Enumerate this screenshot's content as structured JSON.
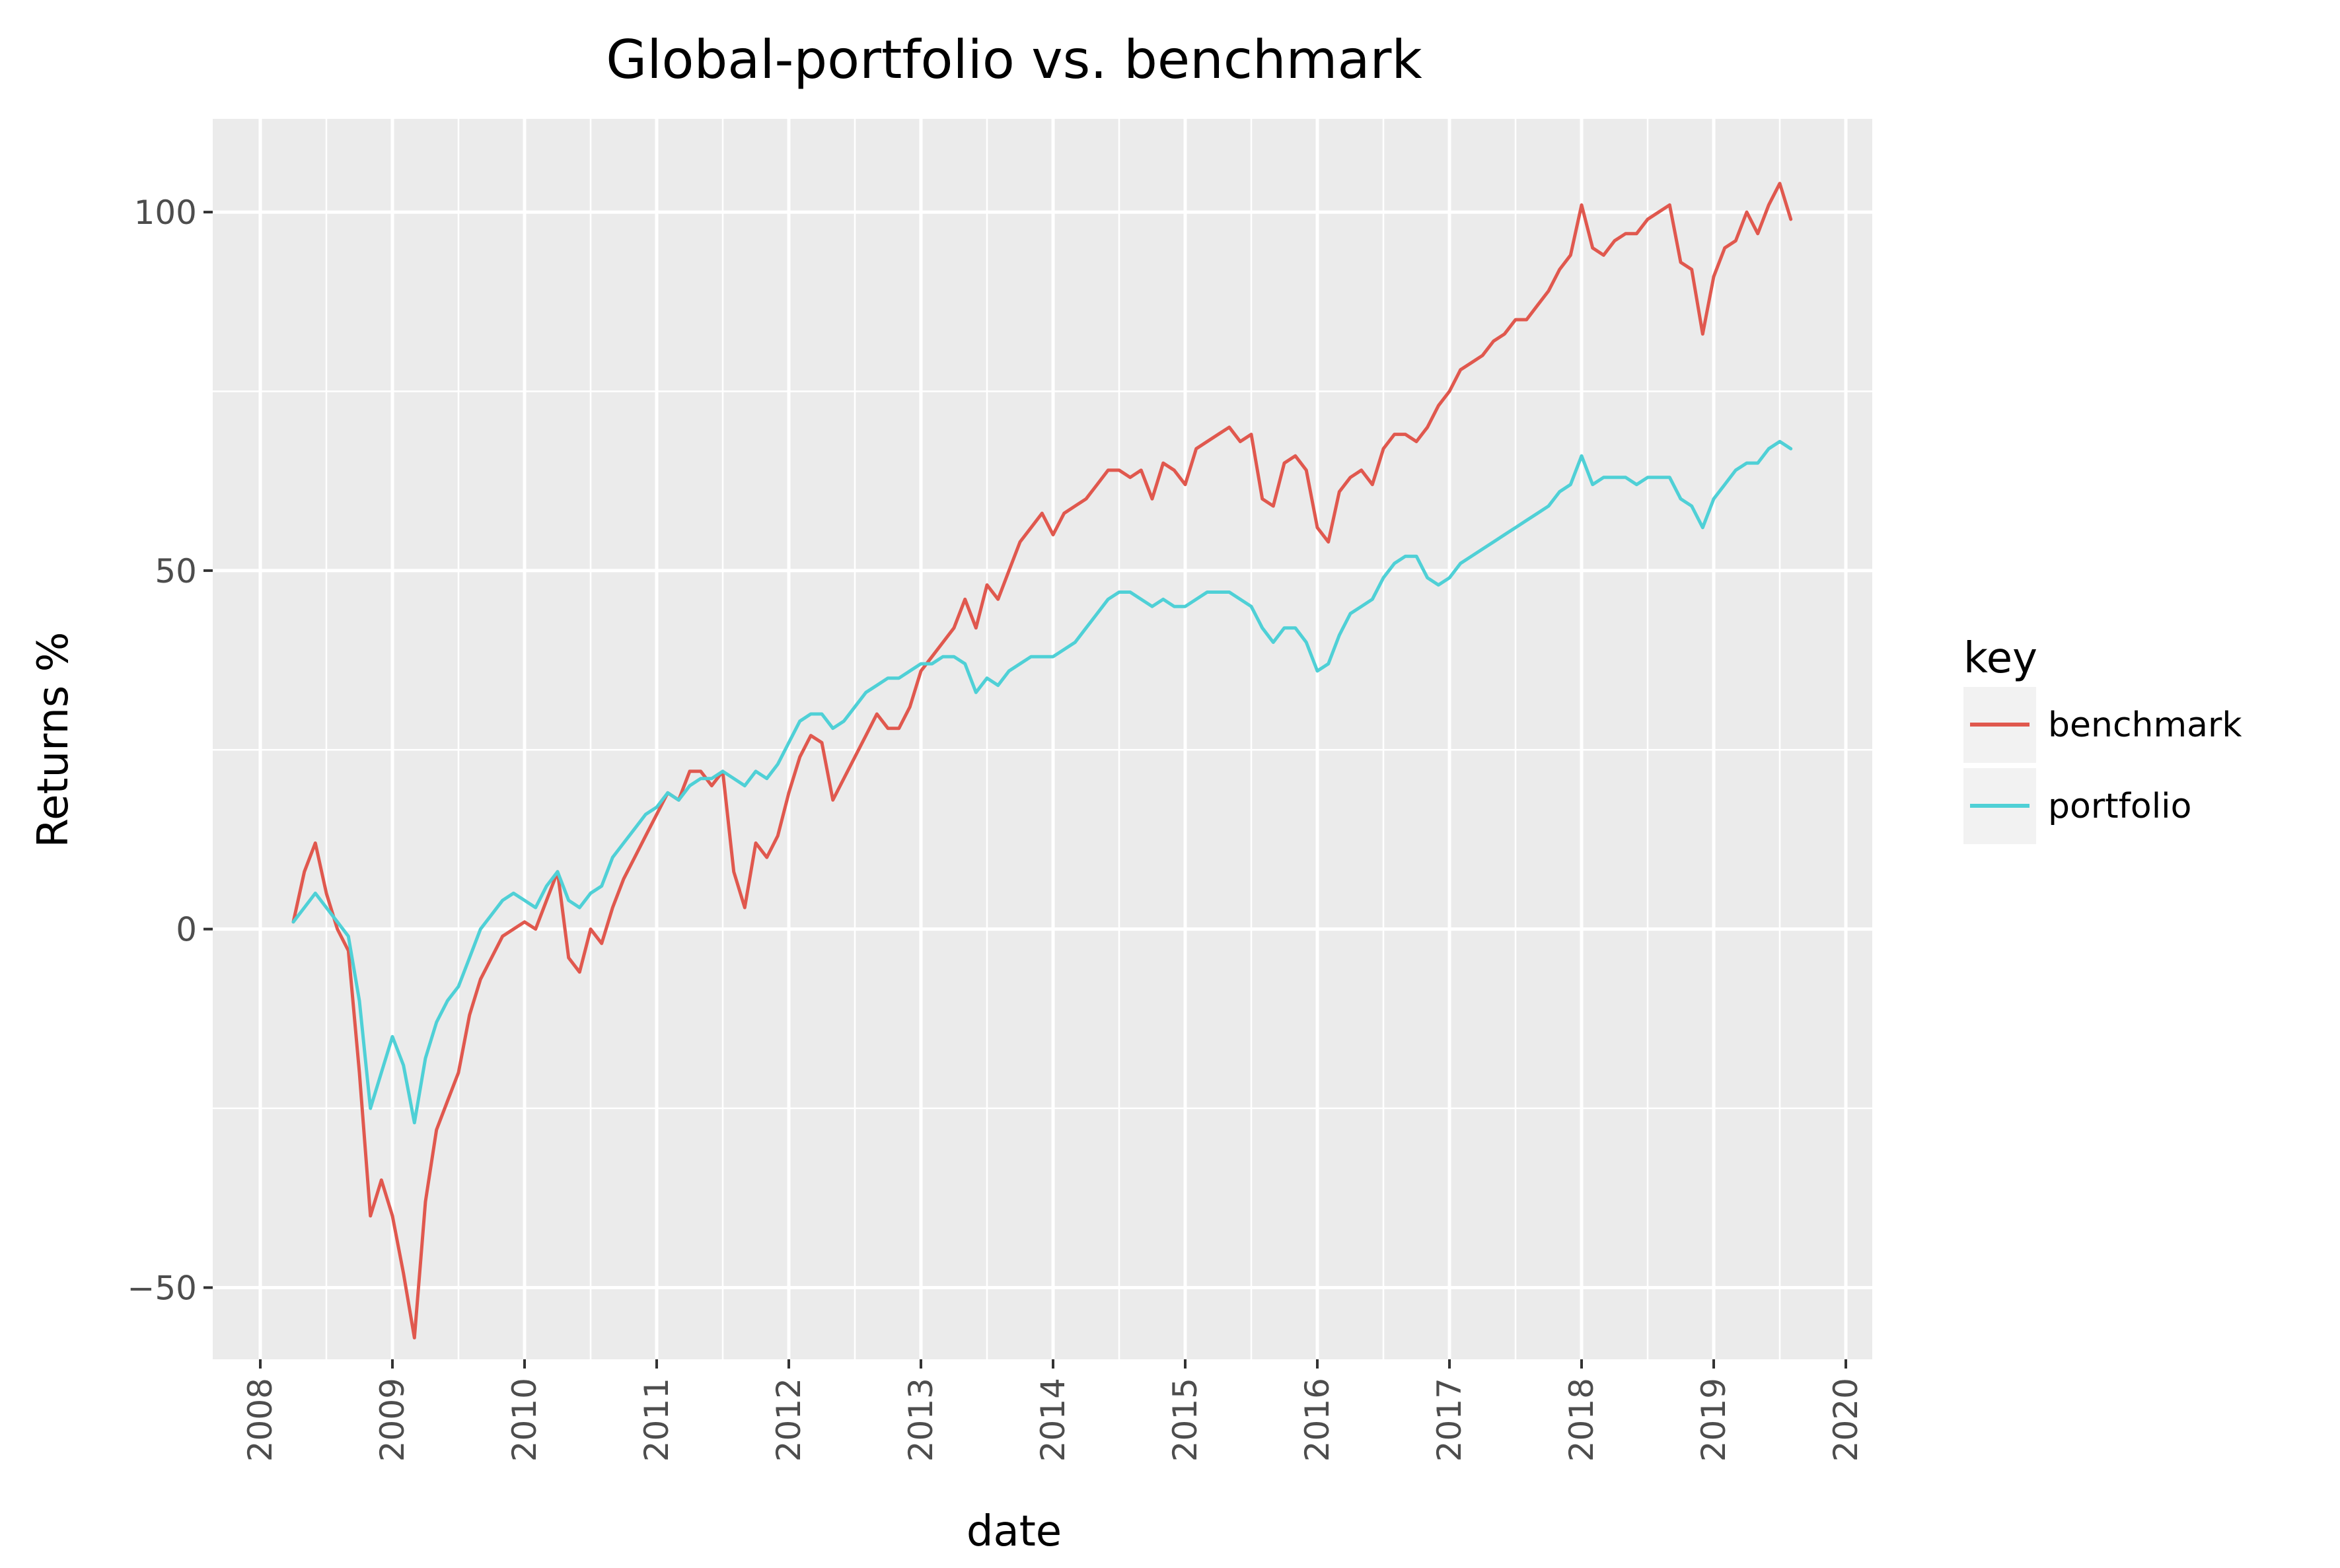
{
  "chart_data": {
    "type": "line",
    "title": "Global-portfolio vs. benchmark",
    "xlabel": "date",
    "ylabel": "Returns %",
    "x_ticks": [
      "2008",
      "2009",
      "2010",
      "2011",
      "2012",
      "2013",
      "2014",
      "2015",
      "2016",
      "2017",
      "2018",
      "2019",
      "2020"
    ],
    "y_ticks": [
      "−50",
      "0",
      "50",
      "100"
    ],
    "y_tick_values": [
      -50,
      0,
      50,
      100
    ],
    "xlim": [
      "2008-01-01",
      "2020-01-01"
    ],
    "ylim": [
      -60,
      113
    ],
    "grid": true,
    "legend": {
      "title": "key",
      "position": "right"
    },
    "colors": {
      "panel": "#ebebeb",
      "grid": "#ffffff",
      "benchmark": "#e0584e",
      "portfolio": "#4fd0d6"
    },
    "series": [
      {
        "name": "benchmark",
        "points": [
          [
            "2008-04",
            1
          ],
          [
            "2008-05",
            8
          ],
          [
            "2008-06",
            12
          ],
          [
            "2008-07",
            5
          ],
          [
            "2008-08",
            0
          ],
          [
            "2008-09",
            -3
          ],
          [
            "2008-10",
            -20
          ],
          [
            "2008-11",
            -40
          ],
          [
            "2008-12",
            -35
          ],
          [
            "2009-01",
            -40
          ],
          [
            "2009-02",
            -48
          ],
          [
            "2009-03",
            -57
          ],
          [
            "2009-04",
            -38
          ],
          [
            "2009-05",
            -28
          ],
          [
            "2009-06",
            -24
          ],
          [
            "2009-07",
            -20
          ],
          [
            "2009-08",
            -12
          ],
          [
            "2009-09",
            -7
          ],
          [
            "2009-10",
            -4
          ],
          [
            "2009-11",
            -1
          ],
          [
            "2009-12",
            0
          ],
          [
            "2010-01",
            1
          ],
          [
            "2010-02",
            0
          ],
          [
            "2010-03",
            4
          ],
          [
            "2010-04",
            8
          ],
          [
            "2010-05",
            -4
          ],
          [
            "2010-06",
            -6
          ],
          [
            "2010-07",
            0
          ],
          [
            "2010-08",
            -2
          ],
          [
            "2010-09",
            3
          ],
          [
            "2010-10",
            7
          ],
          [
            "2010-11",
            10
          ],
          [
            "2010-12",
            13
          ],
          [
            "2011-01",
            16
          ],
          [
            "2011-02",
            19
          ],
          [
            "2011-03",
            18
          ],
          [
            "2011-04",
            22
          ],
          [
            "2011-05",
            22
          ],
          [
            "2011-06",
            20
          ],
          [
            "2011-07",
            22
          ],
          [
            "2011-08",
            8
          ],
          [
            "2011-09",
            3
          ],
          [
            "2011-10",
            12
          ],
          [
            "2011-11",
            10
          ],
          [
            "2011-12",
            13
          ],
          [
            "2012-01",
            19
          ],
          [
            "2012-02",
            24
          ],
          [
            "2012-03",
            27
          ],
          [
            "2012-04",
            26
          ],
          [
            "2012-05",
            18
          ],
          [
            "2012-06",
            21
          ],
          [
            "2012-07",
            24
          ],
          [
            "2012-08",
            27
          ],
          [
            "2012-09",
            30
          ],
          [
            "2012-10",
            28
          ],
          [
            "2012-11",
            28
          ],
          [
            "2012-12",
            31
          ],
          [
            "2013-01",
            36
          ],
          [
            "2013-02",
            38
          ],
          [
            "2013-03",
            40
          ],
          [
            "2013-04",
            42
          ],
          [
            "2013-05",
            46
          ],
          [
            "2013-06",
            42
          ],
          [
            "2013-07",
            48
          ],
          [
            "2013-08",
            46
          ],
          [
            "2013-09",
            50
          ],
          [
            "2013-10",
            54
          ],
          [
            "2013-11",
            56
          ],
          [
            "2013-12",
            58
          ],
          [
            "2014-01",
            55
          ],
          [
            "2014-02",
            58
          ],
          [
            "2014-03",
            59
          ],
          [
            "2014-04",
            60
          ],
          [
            "2014-05",
            62
          ],
          [
            "2014-06",
            64
          ],
          [
            "2014-07",
            64
          ],
          [
            "2014-08",
            63
          ],
          [
            "2014-09",
            64
          ],
          [
            "2014-10",
            60
          ],
          [
            "2014-11",
            65
          ],
          [
            "2014-12",
            64
          ],
          [
            "2015-01",
            62
          ],
          [
            "2015-02",
            67
          ],
          [
            "2015-03",
            68
          ],
          [
            "2015-04",
            69
          ],
          [
            "2015-05",
            70
          ],
          [
            "2015-06",
            68
          ],
          [
            "2015-07",
            69
          ],
          [
            "2015-08",
            60
          ],
          [
            "2015-09",
            59
          ],
          [
            "2015-10",
            65
          ],
          [
            "2015-11",
            66
          ],
          [
            "2015-12",
            64
          ],
          [
            "2016-01",
            56
          ],
          [
            "2016-02",
            54
          ],
          [
            "2016-03",
            61
          ],
          [
            "2016-04",
            63
          ],
          [
            "2016-05",
            64
          ],
          [
            "2016-06",
            62
          ],
          [
            "2016-07",
            67
          ],
          [
            "2016-08",
            69
          ],
          [
            "2016-09",
            69
          ],
          [
            "2016-10",
            68
          ],
          [
            "2016-11",
            70
          ],
          [
            "2016-12",
            73
          ],
          [
            "2017-01",
            75
          ],
          [
            "2017-02",
            78
          ],
          [
            "2017-03",
            79
          ],
          [
            "2017-04",
            80
          ],
          [
            "2017-05",
            82
          ],
          [
            "2017-06",
            83
          ],
          [
            "2017-07",
            85
          ],
          [
            "2017-08",
            85
          ],
          [
            "2017-09",
            87
          ],
          [
            "2017-10",
            89
          ],
          [
            "2017-11",
            92
          ],
          [
            "2017-12",
            94
          ],
          [
            "2018-01",
            101
          ],
          [
            "2018-02",
            95
          ],
          [
            "2018-03",
            94
          ],
          [
            "2018-04",
            96
          ],
          [
            "2018-05",
            97
          ],
          [
            "2018-06",
            97
          ],
          [
            "2018-07",
            99
          ],
          [
            "2018-08",
            100
          ],
          [
            "2018-09",
            101
          ],
          [
            "2018-10",
            93
          ],
          [
            "2018-11",
            92
          ],
          [
            "2018-12",
            83
          ],
          [
            "2019-01",
            91
          ],
          [
            "2019-02",
            95
          ],
          [
            "2019-03",
            96
          ],
          [
            "2019-04",
            100
          ],
          [
            "2019-05",
            97
          ],
          [
            "2019-06",
            101
          ],
          [
            "2019-07",
            104
          ],
          [
            "2019-08",
            99
          ]
        ]
      },
      {
        "name": "portfolio",
        "points": [
          [
            "2008-04",
            1
          ],
          [
            "2008-05",
            3
          ],
          [
            "2008-06",
            5
          ],
          [
            "2008-07",
            3
          ],
          [
            "2008-08",
            1
          ],
          [
            "2008-09",
            -1
          ],
          [
            "2008-10",
            -10
          ],
          [
            "2008-11",
            -25
          ],
          [
            "2008-12",
            -20
          ],
          [
            "2009-01",
            -15
          ],
          [
            "2009-02",
            -19
          ],
          [
            "2009-03",
            -27
          ],
          [
            "2009-04",
            -18
          ],
          [
            "2009-05",
            -13
          ],
          [
            "2009-06",
            -10
          ],
          [
            "2009-07",
            -8
          ],
          [
            "2009-08",
            -4
          ],
          [
            "2009-09",
            0
          ],
          [
            "2009-10",
            2
          ],
          [
            "2009-11",
            4
          ],
          [
            "2009-12",
            5
          ],
          [
            "2010-01",
            4
          ],
          [
            "2010-02",
            3
          ],
          [
            "2010-03",
            6
          ],
          [
            "2010-04",
            8
          ],
          [
            "2010-05",
            4
          ],
          [
            "2010-06",
            3
          ],
          [
            "2010-07",
            5
          ],
          [
            "2010-08",
            6
          ],
          [
            "2010-09",
            10
          ],
          [
            "2010-10",
            12
          ],
          [
            "2010-11",
            14
          ],
          [
            "2010-12",
            16
          ],
          [
            "2011-01",
            17
          ],
          [
            "2011-02",
            19
          ],
          [
            "2011-03",
            18
          ],
          [
            "2011-04",
            20
          ],
          [
            "2011-05",
            21
          ],
          [
            "2011-06",
            21
          ],
          [
            "2011-07",
            22
          ],
          [
            "2011-08",
            21
          ],
          [
            "2011-09",
            20
          ],
          [
            "2011-10",
            22
          ],
          [
            "2011-11",
            21
          ],
          [
            "2011-12",
            23
          ],
          [
            "2012-01",
            26
          ],
          [
            "2012-02",
            29
          ],
          [
            "2012-03",
            30
          ],
          [
            "2012-04",
            30
          ],
          [
            "2012-05",
            28
          ],
          [
            "2012-06",
            29
          ],
          [
            "2012-07",
            31
          ],
          [
            "2012-08",
            33
          ],
          [
            "2012-09",
            34
          ],
          [
            "2012-10",
            35
          ],
          [
            "2012-11",
            35
          ],
          [
            "2012-12",
            36
          ],
          [
            "2013-01",
            37
          ],
          [
            "2013-02",
            37
          ],
          [
            "2013-03",
            38
          ],
          [
            "2013-04",
            38
          ],
          [
            "2013-05",
            37
          ],
          [
            "2013-06",
            33
          ],
          [
            "2013-07",
            35
          ],
          [
            "2013-08",
            34
          ],
          [
            "2013-09",
            36
          ],
          [
            "2013-10",
            37
          ],
          [
            "2013-11",
            38
          ],
          [
            "2013-12",
            38
          ],
          [
            "2014-01",
            38
          ],
          [
            "2014-02",
            39
          ],
          [
            "2014-03",
            40
          ],
          [
            "2014-04",
            42
          ],
          [
            "2014-05",
            44
          ],
          [
            "2014-06",
            46
          ],
          [
            "2014-07",
            47
          ],
          [
            "2014-08",
            47
          ],
          [
            "2014-09",
            46
          ],
          [
            "2014-10",
            45
          ],
          [
            "2014-11",
            46
          ],
          [
            "2014-12",
            45
          ],
          [
            "2015-01",
            45
          ],
          [
            "2015-02",
            46
          ],
          [
            "2015-03",
            47
          ],
          [
            "2015-04",
            47
          ],
          [
            "2015-05",
            47
          ],
          [
            "2015-06",
            46
          ],
          [
            "2015-07",
            45
          ],
          [
            "2015-08",
            42
          ],
          [
            "2015-09",
            40
          ],
          [
            "2015-10",
            42
          ],
          [
            "2015-11",
            42
          ],
          [
            "2015-12",
            40
          ],
          [
            "2016-01",
            36
          ],
          [
            "2016-02",
            37
          ],
          [
            "2016-03",
            41
          ],
          [
            "2016-04",
            44
          ],
          [
            "2016-05",
            45
          ],
          [
            "2016-06",
            46
          ],
          [
            "2016-07",
            49
          ],
          [
            "2016-08",
            51
          ],
          [
            "2016-09",
            52
          ],
          [
            "2016-10",
            52
          ],
          [
            "2016-11",
            49
          ],
          [
            "2016-12",
            48
          ],
          [
            "2017-01",
            49
          ],
          [
            "2017-02",
            51
          ],
          [
            "2017-03",
            52
          ],
          [
            "2017-04",
            53
          ],
          [
            "2017-05",
            54
          ],
          [
            "2017-06",
            55
          ],
          [
            "2017-07",
            56
          ],
          [
            "2017-08",
            57
          ],
          [
            "2017-09",
            58
          ],
          [
            "2017-10",
            59
          ],
          [
            "2017-11",
            61
          ],
          [
            "2017-12",
            62
          ],
          [
            "2018-01",
            66
          ],
          [
            "2018-02",
            62
          ],
          [
            "2018-03",
            63
          ],
          [
            "2018-04",
            63
          ],
          [
            "2018-05",
            63
          ],
          [
            "2018-06",
            62
          ],
          [
            "2018-07",
            63
          ],
          [
            "2018-08",
            63
          ],
          [
            "2018-09",
            63
          ],
          [
            "2018-10",
            60
          ],
          [
            "2018-11",
            59
          ],
          [
            "2018-12",
            56
          ],
          [
            "2019-01",
            60
          ],
          [
            "2019-02",
            62
          ],
          [
            "2019-03",
            64
          ],
          [
            "2019-04",
            65
          ],
          [
            "2019-05",
            65
          ],
          [
            "2019-06",
            67
          ],
          [
            "2019-07",
            68
          ],
          [
            "2019-08",
            67
          ]
        ]
      }
    ]
  }
}
